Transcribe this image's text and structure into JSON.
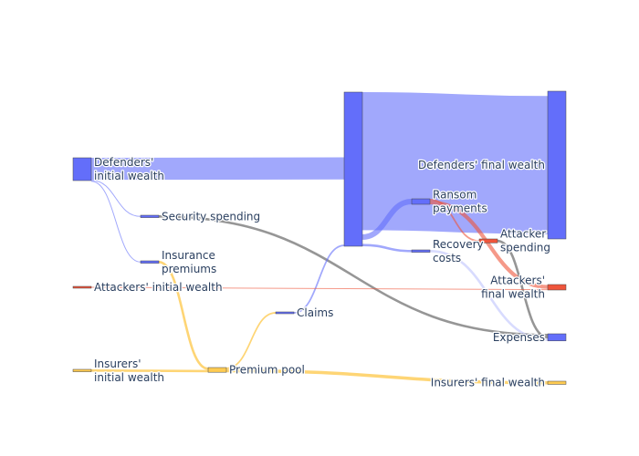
{
  "chart_data": {
    "type": "sankey",
    "title": "",
    "nodes": [
      {
        "id": "def_init",
        "label": [
          "Defenders'",
          "initial wealth"
        ],
        "color": "#636efa"
      },
      {
        "id": "sec",
        "label": [
          "Security spending"
        ],
        "color": "#636efa"
      },
      {
        "id": "ins_prem",
        "label": [
          "Insurance",
          "premiums"
        ],
        "color": "#636efa"
      },
      {
        "id": "att_init",
        "label": [
          "Attackers' initial wealth"
        ],
        "color": "#ef553b"
      },
      {
        "id": "ins_init",
        "label": [
          "Insurers'",
          "initial wealth"
        ],
        "color": "#fecb52"
      },
      {
        "id": "pool",
        "label": [
          "Premium pool"
        ],
        "color": "#fecb52"
      },
      {
        "id": "claims",
        "label": [
          "Claims"
        ],
        "color": "#636efa"
      },
      {
        "id": "def_mid",
        "label": [],
        "color": "#636efa"
      },
      {
        "id": "def_final",
        "label": [
          "Defenders' final wealth"
        ],
        "color": "#636efa"
      },
      {
        "id": "ransom",
        "label": [
          "Ransom",
          "payments"
        ],
        "color": "#636efa"
      },
      {
        "id": "recovery",
        "label": [
          "Recovery",
          "costs"
        ],
        "color": "#636efa"
      },
      {
        "id": "att_spend",
        "label": [
          "Attacker",
          "spending"
        ],
        "color": "#ef553b"
      },
      {
        "id": "att_final",
        "label": [
          "Attackers'",
          "final wealth"
        ],
        "color": "#ef553b"
      },
      {
        "id": "expenses",
        "label": [
          "Expenses"
        ],
        "color": "#636efa"
      },
      {
        "id": "ins_final",
        "label": [
          "Insurers' final wealth"
        ],
        "color": "#fecb52"
      }
    ],
    "links": [
      {
        "source": "def_init",
        "target": "def_mid",
        "value": 9.5,
        "color": "rgba(99,110,250,0.6)"
      },
      {
        "source": "def_init",
        "target": "sec",
        "value": 0.15,
        "color": "rgba(99,110,250,0.6)"
      },
      {
        "source": "def_init",
        "target": "ins_prem",
        "value": 0.15,
        "color": "rgba(99,110,250,0.6)"
      },
      {
        "source": "sec",
        "target": "expenses",
        "value": 0.15,
        "color": "rgba(80,80,80,0.6)"
      },
      {
        "source": "ins_prem",
        "target": "pool",
        "value": 0.15,
        "color": "rgba(254,203,82,0.8)"
      },
      {
        "source": "ins_init",
        "target": "pool",
        "value": 0.15,
        "color": "rgba(254,203,82,0.8)"
      },
      {
        "source": "pool",
        "target": "claims",
        "value": 0.1,
        "color": "rgba(254,203,82,0.8)"
      },
      {
        "source": "pool",
        "target": "ins_final",
        "value": 0.2,
        "color": "rgba(254,203,82,0.8)"
      },
      {
        "source": "claims",
        "target": "def_mid",
        "value": 0.1,
        "color": "rgba(99,110,250,0.6)"
      },
      {
        "source": "def_mid",
        "target": "def_final",
        "value": 8.6,
        "color": "rgba(99,110,250,0.6)"
      },
      {
        "source": "def_mid",
        "target": "ransom",
        "value": 0.85,
        "color": "rgba(99,110,250,0.6)"
      },
      {
        "source": "def_mid",
        "target": "recovery",
        "value": 0.15,
        "color": "rgba(99,110,250,0.6)"
      },
      {
        "source": "recovery",
        "target": "expenses",
        "value": 0.15,
        "color": "rgba(99,110,250,0.25)"
      },
      {
        "source": "ransom",
        "target": "att_final",
        "value": 0.6,
        "color": "rgba(239,85,59,0.6)"
      },
      {
        "source": "ransom",
        "target": "att_spend",
        "value": 0.25,
        "color": "rgba(239,85,59,0.6)"
      },
      {
        "source": "att_spend",
        "target": "expenses",
        "value": 0.15,
        "color": "rgba(80,80,80,0.6)"
      },
      {
        "source": "att_init",
        "target": "att_final",
        "value": 0.1,
        "color": "rgba(239,85,59,0.6)"
      }
    ]
  }
}
